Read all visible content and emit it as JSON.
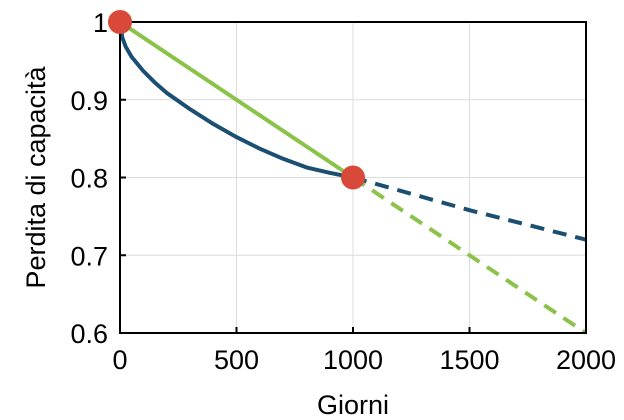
{
  "chart_data": {
    "type": "line",
    "title": "",
    "xlabel": "Giorni",
    "ylabel": "Perdita di capacità",
    "xlim": [
      0,
      2000
    ],
    "ylim": [
      0.6,
      1.0
    ],
    "x_ticks": [
      "0",
      "500",
      "1000",
      "1500",
      "2000"
    ],
    "y_ticks": [
      "0.6",
      "0.7",
      "0.8",
      "0.9",
      "1"
    ],
    "grid": true,
    "colors": {
      "blue": "#1b4f72",
      "green": "#8bc34a",
      "marker": "#d9493a"
    },
    "series": [
      {
        "color": "blue",
        "style": "solid",
        "x": [
          0,
          10,
          25,
          50,
          100,
          150,
          200,
          300,
          400,
          500,
          600,
          700,
          800,
          900,
          1000
        ],
        "y": [
          1.0,
          0.98,
          0.968,
          0.955,
          0.937,
          0.922,
          0.909,
          0.888,
          0.869,
          0.852,
          0.837,
          0.824,
          0.813,
          0.806,
          0.8
        ]
      },
      {
        "color": "blue",
        "style": "dashed",
        "x": [
          1000,
          1250,
          1500,
          1750,
          2000
        ],
        "y": [
          0.8,
          0.779,
          0.758,
          0.739,
          0.72
        ]
      },
      {
        "color": "green",
        "style": "solid",
        "x": [
          0,
          1000
        ],
        "y": [
          1.0,
          0.8
        ]
      },
      {
        "color": "green",
        "style": "dashed",
        "x": [
          1000,
          2000
        ],
        "y": [
          0.8,
          0.6
        ]
      }
    ],
    "markers": [
      {
        "x": 0,
        "y": 1.0
      },
      {
        "x": 1000,
        "y": 0.8
      }
    ]
  }
}
